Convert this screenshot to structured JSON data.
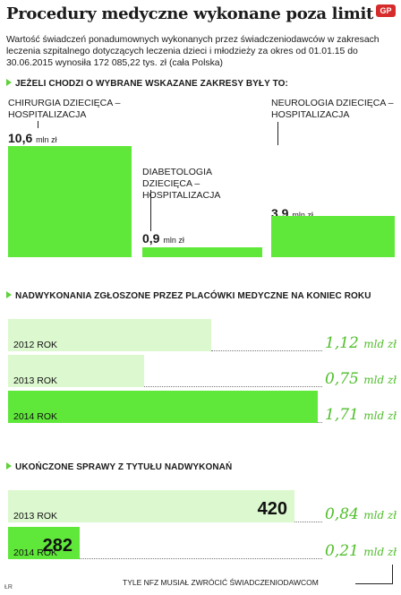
{
  "title": "Procedury medyczne wykonane poza limit",
  "logo": "GP",
  "intro": "Wartość świadczeń ponadumownych wykonanych przez świadczeniodawców w zakresach leczenia szpitalnego dotyczących leczenia dzieci i młodzieży za okres od 01.01.15 do 30.06.2015 wynosiła 172 085,22 tys. zł (cała Polska)",
  "signature": "ŁR",
  "chart_data": [
    {
      "type": "bar",
      "title": "Jeżeli chodzi o wybrane wskazane zakresy były to:",
      "categories": [
        "CHIRURGIA DZIECIĘCA – HOSPITALIZACJA",
        "DIABETOLOGIA DZIECIĘCA – HOSPITALIZACJA",
        "NEUROLOGIA DZIECIĘCA – HOSPITALIZACJA"
      ],
      "values": [
        10.6,
        0.9,
        3.9
      ],
      "value_labels": [
        "10,6",
        "0,9",
        "3,9"
      ],
      "unit": "mln zł",
      "color": "#5fe83a"
    },
    {
      "type": "bar",
      "title": "Nadwykonania zgłoszone przez placówki medyczne na koniec roku",
      "categories": [
        "2012 ROK",
        "2013 ROK",
        "2014 ROK"
      ],
      "values": [
        1.12,
        0.75,
        1.71
      ],
      "value_labels": [
        "1,12",
        "0,75",
        "1,71"
      ],
      "unit": "mld zł",
      "colors": [
        "#dcf8cf",
        "#dcf8cf",
        "#5fe83a"
      ],
      "value_color": "#4fbe2a"
    },
    {
      "type": "bar",
      "title": "Ukończone sprawy z tytułu nadwykonań",
      "categories": [
        "2013 ROK",
        "2014 ROK"
      ],
      "counts": [
        420,
        282
      ],
      "values": [
        0.84,
        0.21
      ],
      "value_labels": [
        "0,84",
        "0,21"
      ],
      "unit": "mld zł",
      "colors": [
        "#dcf8cf",
        "#5fe83a"
      ],
      "value_color": "#4fbe2a",
      "note": "TYLE NFZ MUSIAŁ ZWRÓCIĆ ŚWIADCZENIODAWCOM"
    }
  ]
}
